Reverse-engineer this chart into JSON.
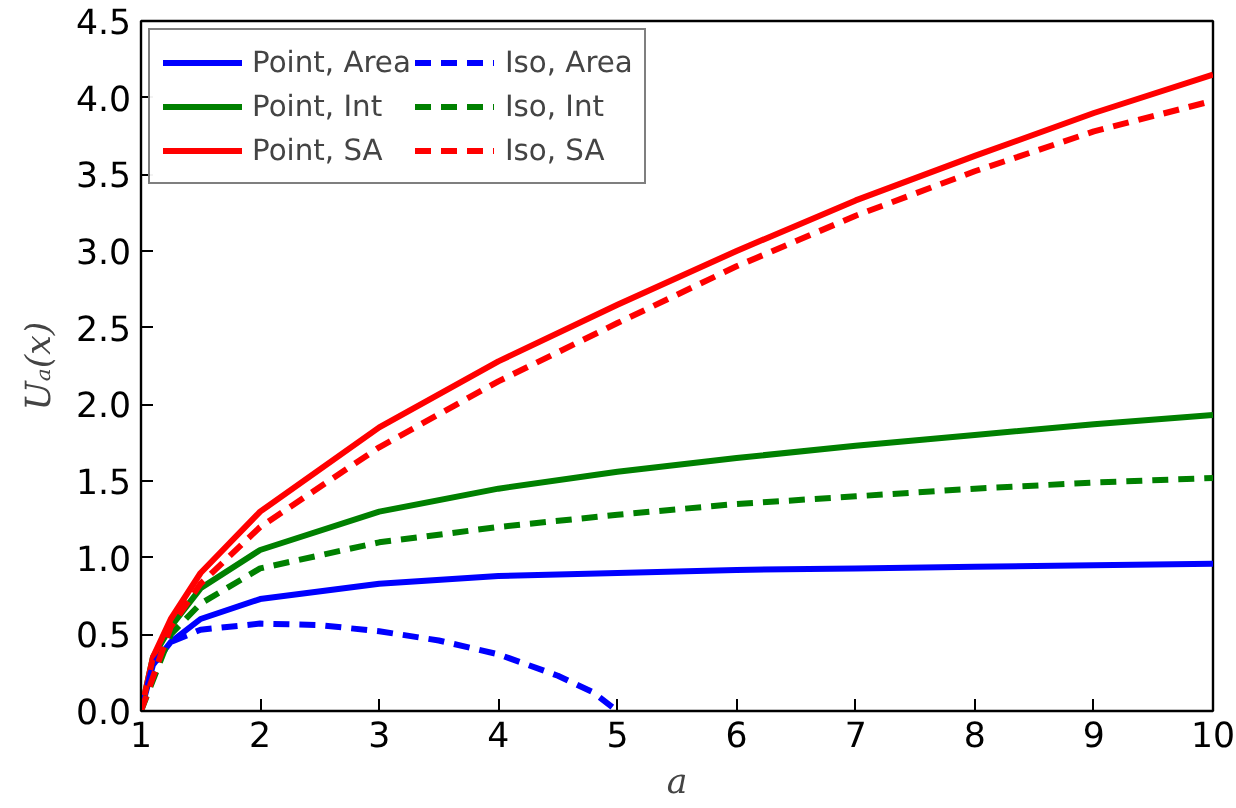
{
  "chart_data": {
    "type": "line",
    "xlabel": "a",
    "ylabel": "Uₐ(x)",
    "xlim": [
      1,
      10
    ],
    "ylim": [
      0,
      4.5
    ],
    "xticks": [
      1,
      2,
      3,
      4,
      5,
      6,
      7,
      8,
      9,
      10
    ],
    "yticks": [
      {
        "value": 0,
        "label": "0.0"
      },
      {
        "value": 0.5,
        "label": "0.5"
      },
      {
        "value": 1,
        "label": "1.0"
      },
      {
        "value": 1.5,
        "label": "1.5"
      },
      {
        "value": 2,
        "label": "2.0"
      },
      {
        "value": 2.5,
        "label": "2.5"
      },
      {
        "value": 3,
        "label": "3.0"
      },
      {
        "value": 3.5,
        "label": "3.5"
      },
      {
        "value": 4,
        "label": "4.0"
      },
      {
        "value": 4.5,
        "label": "4.5"
      }
    ],
    "grid": false,
    "legend": "top left",
    "marker": "none",
    "series": [
      {
        "name": "Point, Area",
        "color": "#0000ff",
        "line_style": "solid",
        "x": [
          1,
          1.1,
          1.25,
          1.5,
          2,
          3,
          4,
          5,
          6,
          7,
          8,
          9,
          10
        ],
        "values": [
          0,
          0.3,
          0.45,
          0.6,
          0.73,
          0.83,
          0.88,
          0.9,
          0.92,
          0.93,
          0.94,
          0.95,
          0.96
        ]
      },
      {
        "name": "Point, Int",
        "color": "#008000",
        "line_style": "solid",
        "x": [
          1,
          1.1,
          1.25,
          1.5,
          2,
          3,
          4,
          5,
          6,
          7,
          8,
          9,
          10
        ],
        "values": [
          0,
          0.35,
          0.55,
          0.8,
          1.05,
          1.3,
          1.45,
          1.56,
          1.65,
          1.73,
          1.8,
          1.87,
          1.93
        ]
      },
      {
        "name": "Point, SA",
        "color": "#ff0000",
        "line_style": "solid",
        "x": [
          1,
          1.1,
          1.25,
          1.5,
          2,
          3,
          4,
          5,
          6,
          7,
          8,
          9,
          10
        ],
        "values": [
          0,
          0.35,
          0.6,
          0.9,
          1.3,
          1.85,
          2.28,
          2.65,
          3.0,
          3.33,
          3.62,
          3.9,
          4.15
        ]
      },
      {
        "name": "Iso, Area",
        "color": "#0000ff",
        "line_style": "dashed",
        "x": [
          1,
          1.1,
          1.25,
          1.5,
          2,
          2.5,
          3,
          3.5,
          4,
          4.5,
          4.8,
          5
        ],
        "values": [
          0,
          0.3,
          0.45,
          0.53,
          0.57,
          0.56,
          0.52,
          0.46,
          0.37,
          0.23,
          0.12,
          0
        ]
      },
      {
        "name": "Iso, Int",
        "color": "#008000",
        "line_style": "dashed",
        "x": [
          1,
          1.25,
          1.5,
          2,
          3,
          4,
          5,
          6,
          7,
          8,
          9,
          10
        ],
        "values": [
          0,
          0.5,
          0.7,
          0.93,
          1.1,
          1.2,
          1.28,
          1.35,
          1.4,
          1.45,
          1.49,
          1.52
        ]
      },
      {
        "name": "Iso, SA",
        "color": "#ff0000",
        "line_style": "dashed",
        "x": [
          1,
          1.25,
          1.5,
          2,
          3,
          4,
          5,
          6,
          7,
          8,
          9,
          10
        ],
        "values": [
          0,
          0.55,
          0.83,
          1.2,
          1.72,
          2.15,
          2.53,
          2.9,
          3.23,
          3.52,
          3.78,
          3.98
        ]
      }
    ]
  }
}
